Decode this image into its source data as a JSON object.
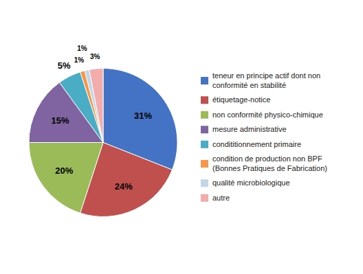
{
  "chart_data": {
    "type": "pie",
    "categories": [
      "teneur en principe actif dont non\nconformité en stabilité",
      "étiquetage-notice",
      "non conformité physico-chimique",
      "mesure administrative",
      "condititionnement primaire",
      "condition de production non BPF\n(Bonnes Pratiques de Fabrication)",
      "qualité microbiologique",
      "autre"
    ],
    "values": [
      31,
      24,
      20,
      15,
      5,
      1,
      1,
      3
    ],
    "value_labels": [
      "31%",
      "24%",
      "20%",
      "15%",
      "5%",
      "1%",
      "1%",
      "3%"
    ],
    "colors": [
      "#4472C4",
      "#C0504D",
      "#9BBB59",
      "#8064A2",
      "#4BACC6",
      "#F79646",
      "#C4D5E8",
      "#F2ACAC"
    ],
    "data_labels": true,
    "legend": "right"
  }
}
